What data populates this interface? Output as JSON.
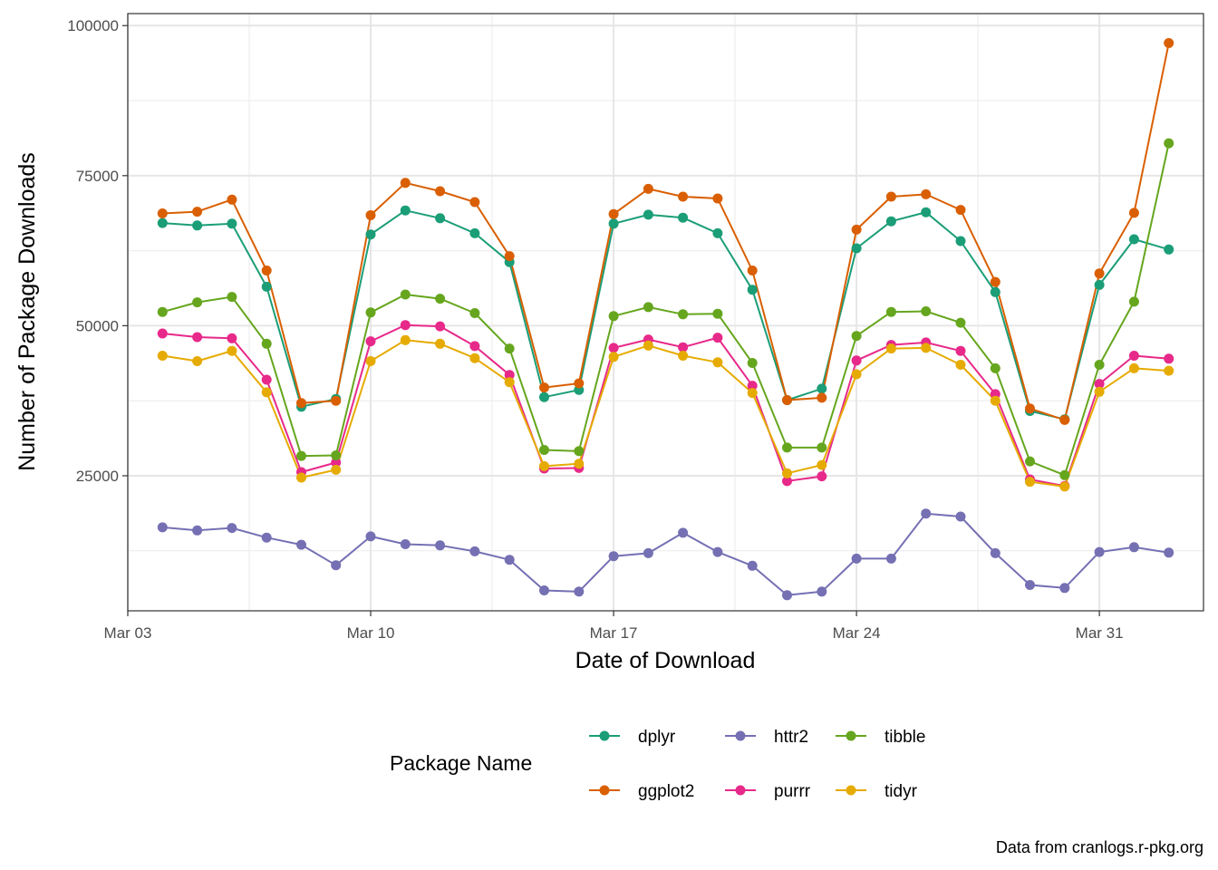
{
  "chart_data": {
    "type": "line",
    "title": "",
    "xlabel": "Date of Download",
    "ylabel": "Number of Package Downloads",
    "caption": "Data from cranlogs.r-pkg.org",
    "legend_title": "Package Name",
    "legend_position": "bottom",
    "grid": true,
    "theme": "bw",
    "x": [
      "2024-03-04",
      "2024-03-05",
      "2024-03-06",
      "2024-03-07",
      "2024-03-08",
      "2024-03-09",
      "2024-03-10",
      "2024-03-11",
      "2024-03-12",
      "2024-03-13",
      "2024-03-14",
      "2024-03-15",
      "2024-03-16",
      "2024-03-17",
      "2024-03-18",
      "2024-03-19",
      "2024-03-20",
      "2024-03-21",
      "2024-03-22",
      "2024-03-23",
      "2024-03-24",
      "2024-03-25",
      "2024-03-26",
      "2024-03-27",
      "2024-03-28",
      "2024-03-29",
      "2024-03-30",
      "2024-03-31",
      "2024-04-01",
      "2024-04-02"
    ],
    "xlim": [
      "2024-03-03",
      "2024-04-03"
    ],
    "x_ticks": [
      {
        "date": "2024-03-03",
        "label": "Mar 03"
      },
      {
        "date": "2024-03-10",
        "label": "Mar 10"
      },
      {
        "date": "2024-03-17",
        "label": "Mar 17"
      },
      {
        "date": "2024-03-24",
        "label": "Mar 24"
      },
      {
        "date": "2024-03-31",
        "label": "Mar 31"
      }
    ],
    "ylim": [
      2500,
      102000
    ],
    "y_ticks": [
      25000,
      50000,
      75000,
      100000
    ],
    "series": [
      {
        "name": "dplyr",
        "color": "#1B9E77",
        "values": [
          67100,
          66700,
          67000,
          56500,
          36500,
          37800,
          65200,
          69200,
          67900,
          65400,
          60600,
          38100,
          39300,
          67000,
          68500,
          68000,
          65400,
          56000,
          37600,
          39500,
          62900,
          67400,
          68900,
          64100,
          55600,
          35800,
          34400,
          56800,
          64400,
          62700
        ]
      },
      {
        "name": "ggplot2",
        "color": "#D95F02",
        "values": [
          68700,
          69000,
          71000,
          59200,
          37100,
          37500,
          68400,
          73800,
          72400,
          70600,
          61600,
          39700,
          40400,
          68600,
          72800,
          71500,
          71200,
          59200,
          37600,
          38000,
          66000,
          71500,
          71900,
          69300,
          57300,
          36200,
          34300,
          58700,
          68800,
          97100
        ]
      },
      {
        "name": "httr2",
        "color": "#7570B3",
        "values": [
          16400,
          15900,
          16300,
          14700,
          13500,
          10100,
          14900,
          13600,
          13400,
          12400,
          11000,
          5900,
          5700,
          11600,
          12100,
          15500,
          12300,
          10000,
          5100,
          5700,
          11200,
          11200,
          18700,
          18200,
          12100,
          6800,
          6300,
          12300,
          13100,
          12200
        ]
      },
      {
        "name": "purrr",
        "color": "#E7298A",
        "values": [
          48700,
          48100,
          47900,
          41000,
          25600,
          27200,
          47400,
          50100,
          49900,
          46600,
          41800,
          26200,
          26300,
          46300,
          47700,
          46400,
          48000,
          40000,
          24100,
          24900,
          44200,
          46800,
          47200,
          45800,
          38600,
          24400,
          23300,
          40300,
          45000,
          44500
        ]
      },
      {
        "name": "tibble",
        "color": "#66A61E",
        "values": [
          52300,
          53900,
          54800,
          47000,
          28300,
          28400,
          52200,
          55200,
          54500,
          52100,
          46200,
          29300,
          29100,
          51600,
          53100,
          51900,
          52000,
          43800,
          29700,
          29700,
          48300,
          52300,
          52400,
          50500,
          42900,
          27400,
          25100,
          43500,
          54000,
          80400
        ]
      },
      {
        "name": "tidyr",
        "color": "#E6AB02",
        "values": [
          45000,
          44100,
          45800,
          38900,
          24700,
          26000,
          44100,
          47600,
          47000,
          44600,
          40600,
          26600,
          27000,
          44800,
          46700,
          45000,
          43900,
          38800,
          25400,
          26800,
          41900,
          46200,
          46300,
          43500,
          37500,
          24000,
          23200,
          39000,
          42900,
          42500
        ]
      }
    ]
  }
}
